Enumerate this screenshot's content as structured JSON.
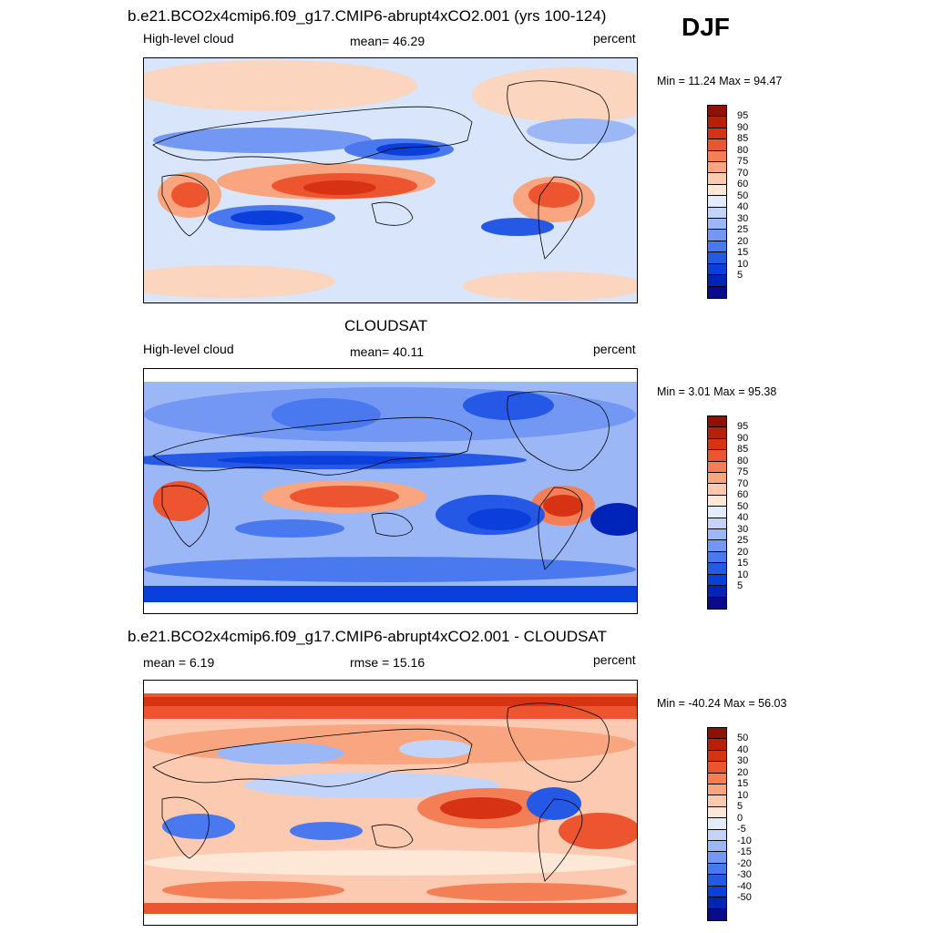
{
  "page": {
    "season": "DJF"
  },
  "palette_abs": [
    "#0a0a8c",
    "#0024b8",
    "#0b3fdc",
    "#2658e6",
    "#4a78ef",
    "#7398f3",
    "#9cb7f6",
    "#c2d4fa",
    "#e3ecfd",
    "#fde8d8",
    "#fccab0",
    "#f9a680",
    "#f47e55",
    "#ec5530",
    "#d83214",
    "#b71f09",
    "#8d1204"
  ],
  "palette_diff": [
    "#0a0a8c",
    "#0024b8",
    "#0b3fdc",
    "#2658e6",
    "#4a78ef",
    "#7398f3",
    "#9cb7f6",
    "#c2d4fa",
    "#e3ecfd",
    "#fde8d8",
    "#fccab0",
    "#f9a680",
    "#f47e55",
    "#ec5530",
    "#d83214",
    "#b71f09",
    "#8d1204"
  ],
  "panels": [
    {
      "title": "b.e21.BCO2x4cmip6.f09_g17.CMIP6-abrupt4xCO2.001 (yrs 100-124)",
      "left_label": "High-level cloud",
      "center_label": "mean=  46.29",
      "right_label": "percent",
      "minmax": "Min =  11.24 Max =  94.47",
      "colorbar_levels": [
        "95",
        "90",
        "85",
        "80",
        "75",
        "70",
        "60",
        "50",
        "40",
        "30",
        "25",
        "20",
        "15",
        "10",
        "5"
      ]
    },
    {
      "title": "CLOUDSAT",
      "left_label": "High-level cloud",
      "center_label": "mean=  40.11",
      "right_label": "percent",
      "minmax": "Min =   3.01 Max =  95.38",
      "colorbar_levels": [
        "95",
        "90",
        "85",
        "80",
        "75",
        "70",
        "60",
        "50",
        "40",
        "30",
        "25",
        "20",
        "15",
        "10",
        "5"
      ]
    },
    {
      "title": "b.e21.BCO2x4cmip6.f09_g17.CMIP6-abrupt4xCO2.001 - CLOUDSAT",
      "left_label": "mean =   6.19",
      "center_label": "rmse =  15.16",
      "right_label": "percent",
      "minmax": "Min = -40.24 Max =  56.03",
      "colorbar_levels": [
        "50",
        "40",
        "30",
        "20",
        "15",
        "10",
        "5",
        "0",
        "-5",
        "-10",
        "-15",
        "-20",
        "-30",
        "-40",
        "-50"
      ]
    }
  ]
}
